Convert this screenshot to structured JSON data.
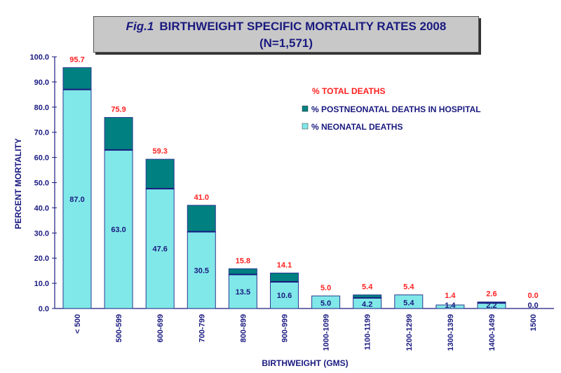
{
  "chart_data": {
    "type": "bar",
    "stacked": true,
    "title_prefix": "Fig.1",
    "title": "BIRTHWEIGHT SPECIFIC MORTALITY RATES 2008",
    "subtitle": "(N=1,571)",
    "xlabel": "BIRTHWEIGHT (GMS)",
    "ylabel": "PERCENT MORTALITY",
    "ylim": [
      0,
      100
    ],
    "yticks": [
      "0.0",
      "10.0",
      "20.0",
      "30.0",
      "40.0",
      "50.0",
      "60.0",
      "70.0",
      "80.0",
      "90.0",
      "100.0"
    ],
    "categories": [
      "< 500",
      "500-599",
      "600-699",
      "700-799",
      "800-899",
      "900-999",
      "1000-1099",
      "1100-1199",
      "1200-1299",
      "1300-1399",
      "1400-1499",
      "1500"
    ],
    "series": [
      {
        "name": "% NEONATAL DEATHS",
        "color": "#80e8e8",
        "values": [
          87.0,
          63.0,
          47.6,
          30.5,
          13.5,
          10.6,
          5.0,
          4.2,
          5.4,
          1.4,
          2.2,
          0.0
        ],
        "labels": [
          "87.0",
          "63.0",
          "47.6",
          "30.5",
          "13.5",
          "10.6",
          "5.0",
          "4.2",
          "5.4",
          "1.4",
          "2.2",
          "0.0"
        ]
      },
      {
        "name": "% POSTNEONATAL DEATHS IN HOSPITAL",
        "color": "#008080",
        "values": [
          8.7,
          12.9,
          11.7,
          10.5,
          2.3,
          3.5,
          0.0,
          1.2,
          0.0,
          0.0,
          0.4,
          0.0
        ]
      }
    ],
    "totals": {
      "name": "% TOTAL DEATHS",
      "color": "#ff2020",
      "values": [
        95.7,
        75.9,
        59.3,
        41.0,
        15.8,
        14.1,
        5.0,
        5.4,
        5.4,
        1.4,
        2.6,
        0.0
      ],
      "labels": [
        "95.7",
        "75.9",
        "59.3",
        "41.0",
        "15.8",
        "14.1",
        "5.0",
        "5.4",
        "5.4",
        "1.4",
        "2.6",
        "0.0"
      ]
    },
    "legend_position": "top-right",
    "grid": false,
    "axis_color": "#1a1a80"
  }
}
